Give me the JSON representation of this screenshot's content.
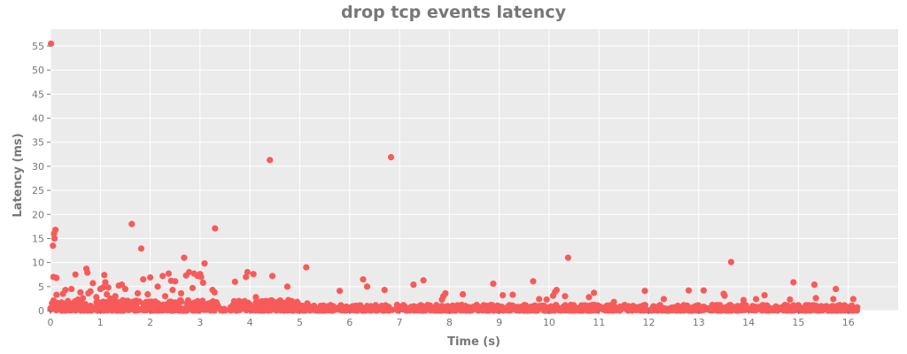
{
  "chart_data": {
    "type": "scatter",
    "title": "drop tcp events latency",
    "xlabel": "Time (s)",
    "ylabel": "Latency (ms)",
    "xlim": [
      0,
      17
    ],
    "ylim": [
      0,
      58.5
    ],
    "xticks": [
      0,
      1,
      2,
      3,
      4,
      5,
      6,
      7,
      8,
      9,
      10,
      11,
      12,
      13,
      14,
      15,
      16
    ],
    "yticks": [
      0,
      5,
      10,
      15,
      20,
      25,
      30,
      35,
      40,
      45,
      50,
      55
    ],
    "grid": true,
    "background_color": "#ebebeb",
    "grid_color": "#ffffff",
    "point_color": "#f85a5a",
    "series": [
      {
        "points": [
          [
            0.01,
            55.5
          ],
          [
            0.05,
            13.5
          ],
          [
            0.07,
            16.0
          ],
          [
            0.08,
            15.0
          ],
          [
            0.1,
            16.8
          ],
          [
            0.06,
            7.0
          ],
          [
            0.12,
            6.8
          ],
          [
            0.12,
            3.3
          ],
          [
            0.25,
            3.5
          ],
          [
            0.3,
            4.3
          ],
          [
            0.35,
            2.0
          ],
          [
            0.42,
            4.5
          ],
          [
            0.5,
            7.5
          ],
          [
            0.55,
            2.3
          ],
          [
            0.6,
            3.8
          ],
          [
            0.65,
            2.6
          ],
          [
            0.72,
            8.7
          ],
          [
            0.74,
            7.9
          ],
          [
            0.76,
            3.6
          ],
          [
            0.8,
            4.0
          ],
          [
            0.85,
            5.7
          ],
          [
            0.92,
            2.8
          ],
          [
            1.0,
            4.5
          ],
          [
            1.05,
            4.8
          ],
          [
            1.08,
            7.4
          ],
          [
            1.1,
            5.9
          ],
          [
            1.13,
            3.4
          ],
          [
            1.16,
            4.8
          ],
          [
            1.2,
            2.5
          ],
          [
            1.25,
            1.8
          ],
          [
            1.3,
            3.0
          ],
          [
            1.37,
            5.2
          ],
          [
            1.43,
            5.4
          ],
          [
            1.5,
            4.5
          ],
          [
            1.63,
            18.0
          ],
          [
            1.75,
            3.6
          ],
          [
            1.82,
            12.9
          ],
          [
            1.86,
            6.5
          ],
          [
            1.95,
            3.4
          ],
          [
            2.0,
            6.9
          ],
          [
            2.1,
            1.9
          ],
          [
            2.15,
            5.0
          ],
          [
            2.25,
            7.2
          ],
          [
            2.3,
            3.0
          ],
          [
            2.37,
            7.7
          ],
          [
            2.42,
            6.2
          ],
          [
            2.45,
            4.3
          ],
          [
            2.5,
            6.1
          ],
          [
            2.62,
            3.6
          ],
          [
            2.68,
            11.0
          ],
          [
            2.72,
            7.3
          ],
          [
            2.78,
            8.0
          ],
          [
            2.85,
            4.7
          ],
          [
            2.88,
            7.7
          ],
          [
            2.95,
            7.2
          ],
          [
            3.0,
            7.6
          ],
          [
            3.02,
            7.0
          ],
          [
            3.06,
            5.8
          ],
          [
            3.09,
            9.8
          ],
          [
            3.25,
            4.3
          ],
          [
            3.3,
            17.1
          ],
          [
            3.29,
            3.8
          ],
          [
            3.7,
            6.0
          ],
          [
            3.78,
            2.0
          ],
          [
            3.92,
            7.0
          ],
          [
            3.95,
            8.0
          ],
          [
            4.07,
            7.6
          ],
          [
            4.12,
            2.8
          ],
          [
            4.4,
            31.3
          ],
          [
            4.45,
            7.2
          ],
          [
            4.7,
            1.5
          ],
          [
            4.75,
            5.0
          ],
          [
            5.13,
            9.0
          ],
          [
            5.15,
            1.5
          ],
          [
            5.55,
            0.9
          ],
          [
            5.8,
            4.1
          ],
          [
            6.2,
            1.0
          ],
          [
            6.27,
            6.5
          ],
          [
            6.35,
            5.0
          ],
          [
            6.7,
            4.3
          ],
          [
            6.83,
            31.9
          ],
          [
            6.95,
            1.2
          ],
          [
            7.28,
            5.4
          ],
          [
            7.48,
            6.3
          ],
          [
            7.85,
            2.3
          ],
          [
            7.88,
            3.0
          ],
          [
            7.92,
            3.6
          ],
          [
            8.27,
            3.4
          ],
          [
            8.88,
            5.6
          ],
          [
            9.07,
            3.2
          ],
          [
            9.27,
            3.3
          ],
          [
            9.68,
            6.1
          ],
          [
            9.8,
            2.4
          ],
          [
            9.95,
            2.3
          ],
          [
            10.08,
            3.1
          ],
          [
            10.12,
            3.9
          ],
          [
            10.15,
            4.3
          ],
          [
            10.32,
            3.0
          ],
          [
            10.38,
            11.0
          ],
          [
            10.8,
            2.8
          ],
          [
            10.9,
            3.7
          ],
          [
            11.3,
            1.8
          ],
          [
            11.92,
            4.1
          ],
          [
            12.3,
            2.4
          ],
          [
            12.8,
            4.2
          ],
          [
            13.1,
            4.2
          ],
          [
            13.5,
            3.5
          ],
          [
            13.52,
            3.1
          ],
          [
            13.65,
            10.1
          ],
          [
            13.9,
            2.2
          ],
          [
            14.15,
            2.4
          ],
          [
            14.32,
            3.2
          ],
          [
            14.83,
            2.3
          ],
          [
            14.9,
            5.9
          ],
          [
            15.32,
            5.4
          ],
          [
            15.35,
            2.6
          ],
          [
            15.7,
            2.4
          ],
          [
            15.75,
            4.5
          ],
          [
            16.1,
            2.4
          ],
          [
            16.18,
            0.7
          ]
        ]
      }
    ]
  }
}
